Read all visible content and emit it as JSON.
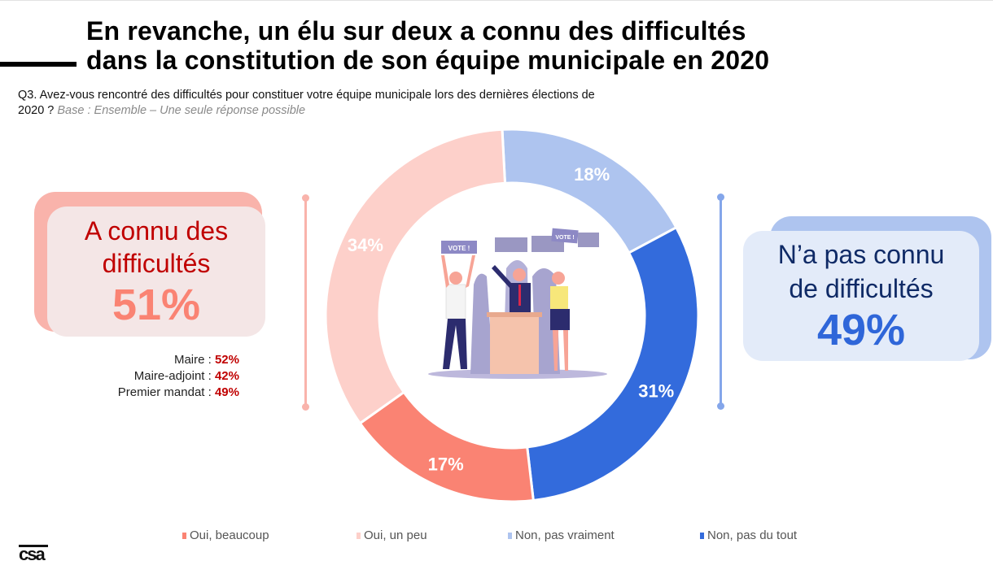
{
  "header": {
    "title_line1": "En revanche, un élu sur deux a connu des difficultés",
    "title_line2": "dans la constitution de son équipe municipale en 2020",
    "question": "Q3. Avez-vous rencontré des difficultés pour constituer votre équipe municipale lors des dernières élections de 2020 ?",
    "base": "Base : Ensemble – Une seule réponse possible"
  },
  "left_summary": {
    "label": "A connu des difficultés",
    "value": "51%",
    "breakdown": [
      {
        "label": "Maire :",
        "value": "52%"
      },
      {
        "label": "Maire-adjoint :",
        "value": "42%"
      },
      {
        "label": "Premier mandat :",
        "value": "49%"
      }
    ]
  },
  "right_summary": {
    "label_line1": "N’a pas connu",
    "label_line2": "de difficultés",
    "value": "49%"
  },
  "illustration": {
    "sign_text": "VOTE !"
  },
  "logo": {
    "text": "csa"
  },
  "colors": {
    "oui_beaucoup": "#fa8373",
    "oui_un_peu": "#fdd0ca",
    "non_pas_vraiment": "#aec4ef",
    "non_pas_du_tout": "#336bdc"
  },
  "chart_data": {
    "type": "pie",
    "variant": "donut",
    "title": "",
    "categories": [
      "Non, pas vraiment",
      "Non, pas du tout",
      "Oui, beaucoup",
      "Oui, un peu"
    ],
    "values": [
      18,
      31,
      17,
      34
    ],
    "labels": [
      "18%",
      "31%",
      "17%",
      "34%"
    ],
    "colors": [
      "#aec4ef",
      "#336bdc",
      "#fa8373",
      "#fdd0ca"
    ],
    "start": "top, clockwise",
    "legend_placement": "bottom",
    "legend": [
      {
        "label": "Oui, beaucoup",
        "color": "#fa8373"
      },
      {
        "label": "Oui, un peu",
        "color": "#fdd0ca"
      },
      {
        "label": "Non, pas vraiment",
        "color": "#aec4ef"
      },
      {
        "label": "Non, pas du tout",
        "color": "#336bdc"
      }
    ]
  }
}
